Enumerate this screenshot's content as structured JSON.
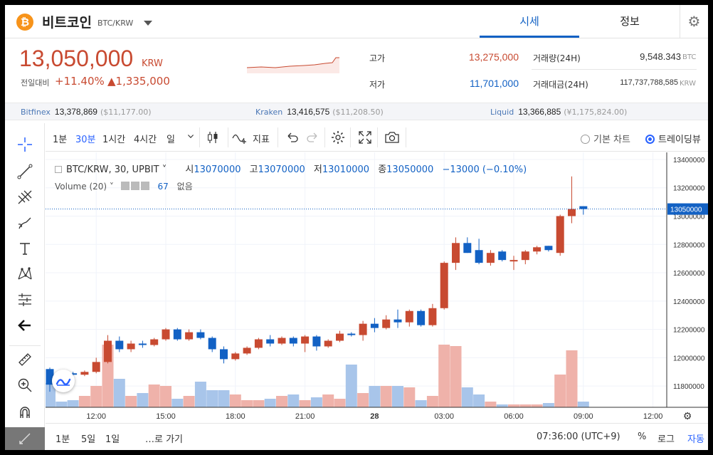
{
  "header": {
    "coin_symbol": "₿",
    "coin_name": "비트코인",
    "pair": "BTC/KRW",
    "tabs": [
      {
        "label": "시세"
      },
      {
        "label": "정보"
      }
    ],
    "settings_icon": "gear-icon"
  },
  "summary": {
    "price": "13,050,000",
    "price_unit": "KRW",
    "change_label": "전일대비",
    "change_rate": "+11.40%",
    "change_amount": "▲1,335,000",
    "high_label": "고가",
    "high_value": "13,275,000",
    "low_label": "저가",
    "low_value": "11,701,000",
    "volume_label": "거래량(24H)",
    "volume_value": "9,548.343",
    "volume_unit": "BTC",
    "amount_label": "거래대금(24H)",
    "amount_value": "117,737,788,585",
    "amount_unit": "KRW"
  },
  "exchanges": [
    {
      "name": "Bitfinex",
      "price": "13,378,869",
      "sub": "($11,177.00)"
    },
    {
      "name": "Kraken",
      "price": "13,416,575",
      "sub": "($11,208.50)"
    },
    {
      "name": "Liquid",
      "price": "13,366,885",
      "sub": "(¥1,175,824.00)"
    }
  ],
  "toolbar": {
    "intervals": [
      "1분",
      "30분",
      "1시간",
      "4시간",
      "일"
    ],
    "active_interval": "30분",
    "indicator_label": "지표",
    "chart_basic": "기본 차트",
    "chart_tv": "트레이딩뷰"
  },
  "legend": {
    "symbol": "BTC/KRW, 30, UPBIT",
    "o_label": "시",
    "o_value": "13070000",
    "h_label": "고",
    "h_value": "13070000",
    "l_label": "저",
    "l_value": "13010000",
    "c_label": "종",
    "c_value": "13050000",
    "change": "−13000 (−0.10%)",
    "volume_label": "Volume (20)",
    "volume_value": "67",
    "volume_extra": "없음"
  },
  "bottom": {
    "ranges": [
      "1분",
      "5일",
      "1일"
    ],
    "goto": "…로 가기",
    "time": "07:36:00 (UTC+9)",
    "percent": "%",
    "log": "로그",
    "auto": "자동"
  },
  "colors": {
    "up": "#c84a31",
    "down": "#1261c4",
    "up_vol": "#efb2aa",
    "down_vol": "#a8c5ea"
  },
  "chart_data": {
    "type": "candlestick",
    "ylim": [
      11650000,
      13450000
    ],
    "y_ticks": [
      11800000,
      12000000,
      12200000,
      12400000,
      12600000,
      12800000,
      13000000,
      13200000,
      13400000
    ],
    "x_tick_labels": [
      {
        "i": 4,
        "label": "12:00"
      },
      {
        "i": 10,
        "label": "15:00"
      },
      {
        "i": 16,
        "label": "18:00"
      },
      {
        "i": 22,
        "label": "21:00"
      },
      {
        "i": 28,
        "label": "28"
      },
      {
        "i": 34,
        "label": "03:00"
      },
      {
        "i": 40,
        "label": "06:00"
      },
      {
        "i": 46,
        "label": "09:00"
      },
      {
        "i": 52,
        "label": "12:00"
      }
    ],
    "current_price": 13050000,
    "current_price_label": "13050000",
    "candles": [
      [
        11920000,
        11930000,
        11760000,
        11810000,
        34
      ],
      [
        11900000,
        11910000,
        11880000,
        11890000,
        8
      ],
      [
        11890000,
        11900000,
        11870000,
        11880000,
        10
      ],
      [
        11880000,
        11910000,
        11870000,
        11900000,
        16
      ],
      [
        11900000,
        12000000,
        11890000,
        11970000,
        30
      ],
      [
        11970000,
        12160000,
        11960000,
        12120000,
        88
      ],
      [
        12120000,
        12150000,
        12040000,
        12060000,
        40
      ],
      [
        12060000,
        12120000,
        12040000,
        12100000,
        16
      ],
      [
        12100000,
        12120000,
        12070000,
        12090000,
        20
      ],
      [
        12090000,
        12140000,
        12080000,
        12130000,
        32
      ],
      [
        12130000,
        12210000,
        12120000,
        12200000,
        30
      ],
      [
        12200000,
        12210000,
        12120000,
        12130000,
        12
      ],
      [
        12130000,
        12200000,
        12120000,
        12180000,
        16
      ],
      [
        12180000,
        12200000,
        12130000,
        12140000,
        36
      ],
      [
        12140000,
        12150000,
        12040000,
        12060000,
        24
      ],
      [
        12060000,
        12080000,
        11960000,
        11990000,
        24
      ],
      [
        11990000,
        12040000,
        11980000,
        12030000,
        18
      ],
      [
        12030000,
        12080000,
        12020000,
        12070000,
        10
      ],
      [
        12070000,
        12140000,
        12060000,
        12130000,
        10
      ],
      [
        12130000,
        12160000,
        12080000,
        12100000,
        12
      ],
      [
        12100000,
        12150000,
        12090000,
        12140000,
        16
      ],
      [
        12140000,
        12150000,
        12080000,
        12100000,
        18
      ],
      [
        12100000,
        12160000,
        12040000,
        12150000,
        10
      ],
      [
        12150000,
        12160000,
        12050000,
        12080000,
        14
      ],
      [
        12080000,
        12130000,
        12070000,
        12120000,
        18
      ],
      [
        12120000,
        12190000,
        12110000,
        12170000,
        12
      ],
      [
        12170000,
        12180000,
        12150000,
        12160000,
        60
      ],
      [
        12160000,
        12260000,
        12120000,
        12240000,
        20
      ],
      [
        12240000,
        12280000,
        12180000,
        12210000,
        30
      ],
      [
        12210000,
        12300000,
        12200000,
        12270000,
        30
      ],
      [
        12270000,
        12340000,
        12210000,
        12250000,
        30
      ],
      [
        12250000,
        12340000,
        12220000,
        12330000,
        28
      ],
      [
        12330000,
        12340000,
        12220000,
        12230000,
        10
      ],
      [
        12230000,
        12380000,
        12220000,
        12350000,
        16
      ],
      [
        12350000,
        12680000,
        12340000,
        12670000,
        88
      ],
      [
        12670000,
        12850000,
        12620000,
        12810000,
        86
      ],
      [
        12810000,
        12850000,
        12740000,
        12740000,
        28
      ],
      [
        12760000,
        12840000,
        12660000,
        12670000,
        18
      ],
      [
        12670000,
        12760000,
        12650000,
        12740000,
        8
      ],
      [
        12750000,
        12760000,
        12680000,
        12690000,
        4
      ],
      [
        12690000,
        12720000,
        12620000,
        12690000,
        4
      ],
      [
        12690000,
        12760000,
        12660000,
        12750000,
        4
      ],
      [
        12750000,
        12790000,
        12730000,
        12780000,
        4
      ],
      [
        12790000,
        12790000,
        12750000,
        12760000,
        6
      ],
      [
        12740000,
        13010000,
        12720000,
        13000000,
        46
      ],
      [
        13000000,
        13280000,
        12950000,
        13050000,
        80
      ],
      [
        13070000,
        13070000,
        13010000,
        13050000,
        8
      ]
    ]
  }
}
